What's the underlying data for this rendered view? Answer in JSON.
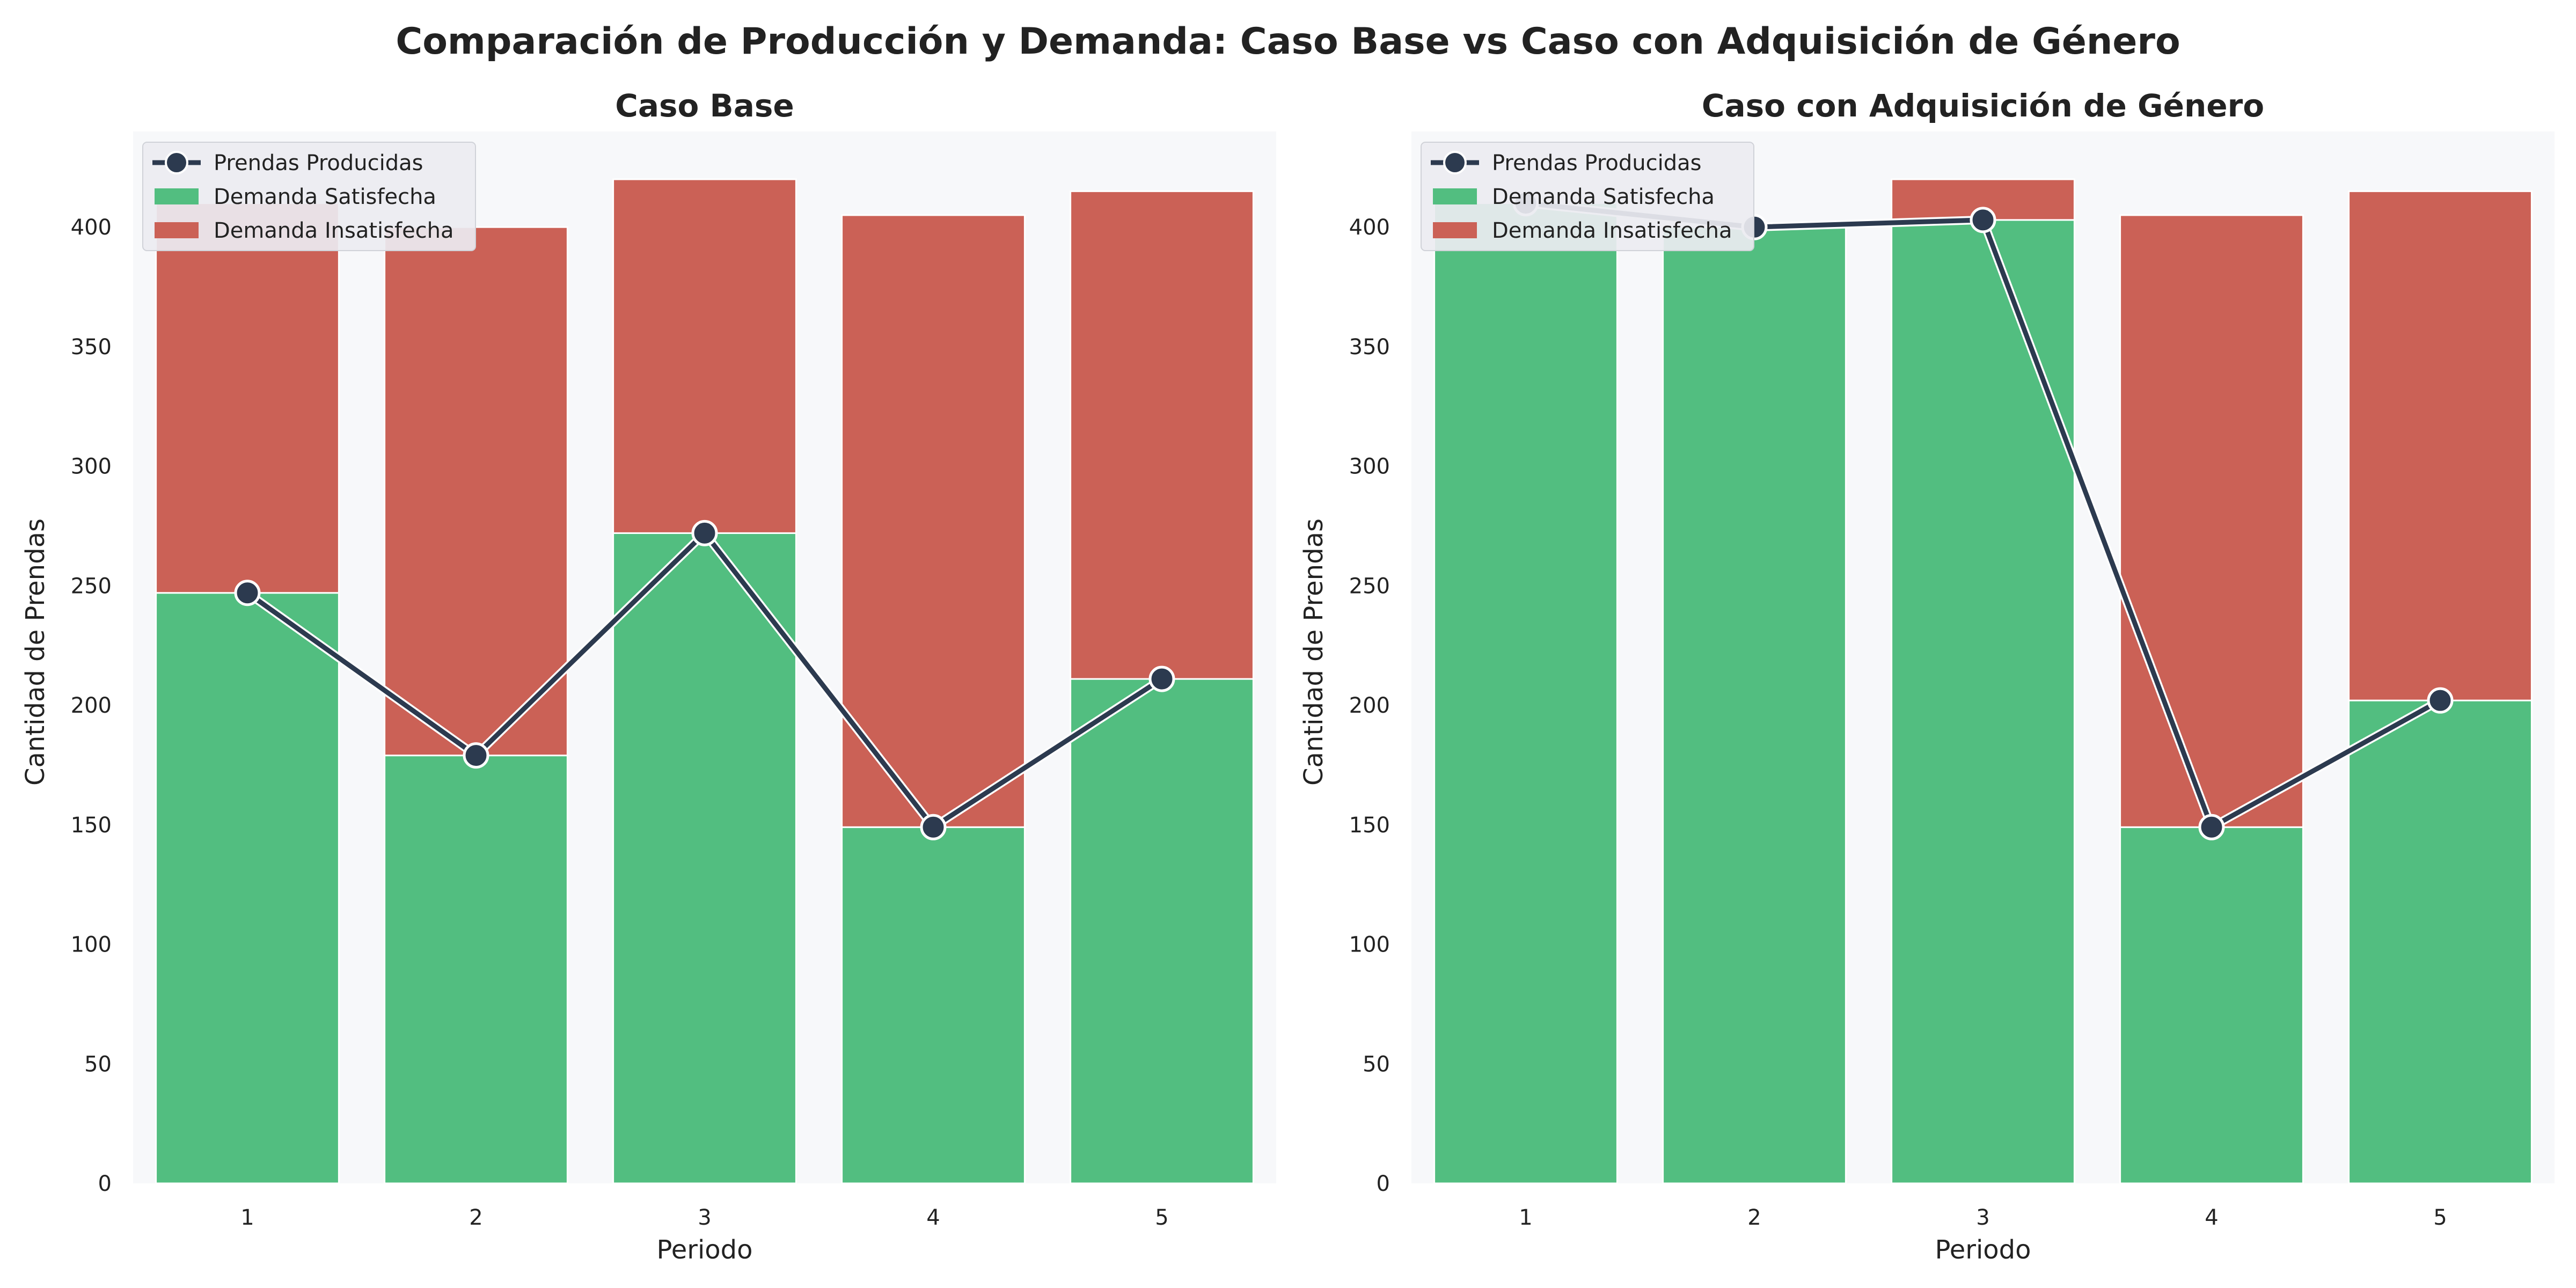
{
  "figure": {
    "title": "Comparación de Producción y Demanda: Caso Base vs Caso con Adquisición de Género"
  },
  "colors": {
    "satisfied": "#52be80",
    "unsatisfied": "#cb6156",
    "line": "#2c3a4f",
    "plot_bg": "#f7f8fa",
    "legend_bg": "#ebecf1"
  },
  "chart_data": [
    {
      "type": "bar",
      "stacked": true,
      "title": "Caso Base",
      "xlabel": "Periodo",
      "ylabel": "Cantidad de Prendas",
      "categories": [
        "1",
        "2",
        "3",
        "4",
        "5"
      ],
      "ylim": [
        0,
        440
      ],
      "yticks": [
        0,
        50,
        100,
        150,
        200,
        250,
        300,
        350,
        400
      ],
      "grid": false,
      "legend_position": "upper-left",
      "series": [
        {
          "name": "Demanda Satisfecha",
          "kind": "bar",
          "values": [
            247,
            179,
            272,
            149,
            211
          ]
        },
        {
          "name": "Demanda Insatisfecha",
          "kind": "bar",
          "values": [
            163,
            221,
            148,
            256,
            204
          ]
        },
        {
          "name": "Prendas Producidas",
          "kind": "line",
          "values": [
            247,
            179,
            272,
            149,
            211
          ]
        }
      ]
    },
    {
      "type": "bar",
      "stacked": true,
      "title": "Caso con Adquisición de Género",
      "xlabel": "Periodo",
      "ylabel": "Cantidad de Prendas",
      "categories": [
        "1",
        "2",
        "3",
        "4",
        "5"
      ],
      "ylim": [
        0,
        440
      ],
      "yticks": [
        0,
        50,
        100,
        150,
        200,
        250,
        300,
        350,
        400
      ],
      "grid": false,
      "legend_position": "upper-left",
      "series": [
        {
          "name": "Demanda Satisfecha",
          "kind": "bar",
          "values": [
            410,
            400,
            403,
            149,
            202
          ]
        },
        {
          "name": "Demanda Insatisfecha",
          "kind": "bar",
          "values": [
            0,
            0,
            17,
            256,
            213
          ]
        },
        {
          "name": "Prendas Producidas",
          "kind": "line",
          "values": [
            410,
            400,
            403,
            149,
            202
          ]
        }
      ]
    }
  ]
}
